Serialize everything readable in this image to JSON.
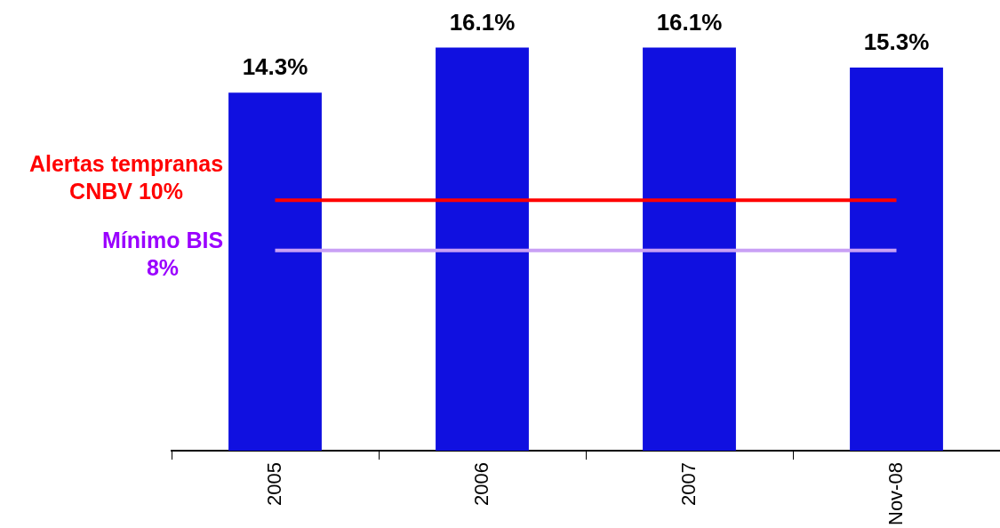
{
  "chart_data": {
    "type": "bar",
    "categories": [
      "2005",
      "2006",
      "2007",
      "Nov-08"
    ],
    "values": [
      14.3,
      16.1,
      16.1,
      15.3
    ],
    "color": "#1010e0",
    "value_labels": [
      "14.3%",
      "16.1%",
      "16.1%",
      "15.3%"
    ],
    "grid": false,
    "legend": false,
    "ref_lines": [
      {
        "axis": "y",
        "value": 10,
        "label": "Alertas tempranas\nCNBV 10%",
        "color": "#ff0000"
      },
      {
        "axis": "y",
        "value": 8,
        "label": "Mínimo BIS\n8%",
        "color": "#c9a0f5"
      }
    ]
  }
}
